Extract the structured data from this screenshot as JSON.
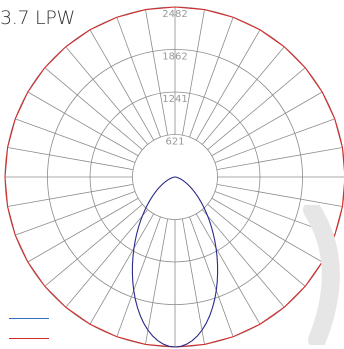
{
  "title": "3.7 LPW",
  "chart_data": {
    "type": "polar",
    "title": "3.7 LPW",
    "rlim": [
      0,
      2482
    ],
    "radial_ticks": [
      "621",
      "1241",
      "1862",
      "2482"
    ],
    "radial_tick_values": [
      621,
      1241,
      1862,
      2482
    ],
    "angular_step_deg": 10,
    "grid": true,
    "series": [
      {
        "color": "#d42a2a",
        "angles_deg": [
          0,
          10,
          20,
          30,
          40,
          50,
          60,
          70,
          80,
          90,
          100,
          110,
          120,
          130,
          140,
          150,
          160,
          170,
          180,
          190,
          200,
          210,
          220,
          230,
          240,
          250,
          260,
          270,
          280,
          290,
          300,
          310,
          320,
          330,
          340,
          350
        ],
        "values": [
          2482,
          2482,
          2482,
          2482,
          2482,
          2482,
          2482,
          2482,
          2482,
          2482,
          2482,
          2482,
          2482,
          2482,
          2482,
          2482,
          2482,
          2482,
          2482,
          2482,
          2482,
          2482,
          2482,
          2482,
          2482,
          2482,
          2482,
          2482,
          2482,
          2482,
          2482,
          2482,
          2482,
          2482,
          2482,
          2482
        ]
      },
      {
        "color": "#2a2a8c",
        "angles_deg": [
          0,
          2,
          4,
          6,
          8,
          10,
          12,
          14,
          16,
          18,
          20,
          22,
          24,
          26,
          28,
          30,
          32,
          34,
          36,
          38,
          40,
          42,
          44,
          46,
          48,
          50,
          52,
          54,
          56,
          58,
          60,
          62,
          64,
          66,
          68,
          70,
          72,
          74,
          76,
          78,
          80,
          82,
          84,
          86,
          88,
          90,
          -2,
          -4,
          -6,
          -8,
          -10,
          -12,
          -14,
          -16,
          -18,
          -20,
          -22,
          -24,
          -26,
          -28,
          -30,
          -32,
          -34,
          -36,
          -38,
          -40,
          -42,
          -44,
          -46,
          -48,
          -50,
          -52,
          -54,
          -56,
          -58,
          -60,
          -62,
          -64,
          -66,
          -68,
          -70,
          -72,
          -74,
          -76,
          -78,
          -80,
          -82,
          -84,
          -86,
          -88,
          -90
        ],
        "values": [
          2482,
          2473,
          2446,
          2403,
          2344,
          2271,
          2186,
          2090,
          1986,
          1876,
          1762,
          1646,
          1530,
          1416,
          1305,
          1198,
          1096,
          999,
          907,
          821,
          740,
          665,
          596,
          532,
          473,
          419,
          370,
          325,
          284,
          247,
          213,
          183,
          155,
          131,
          109,
          89,
          72,
          57,
          44,
          33,
          23,
          15,
          8,
          3,
          1,
          0,
          2473,
          2446,
          2403,
          2344,
          2271,
          2186,
          2090,
          1986,
          1876,
          1762,
          1646,
          1530,
          1416,
          1305,
          1198,
          1096,
          999,
          907,
          821,
          740,
          665,
          596,
          532,
          473,
          419,
          370,
          325,
          284,
          247,
          213,
          183,
          155,
          131,
          109,
          89,
          72,
          57,
          44,
          33,
          23,
          15,
          8,
          3,
          1,
          0
        ]
      }
    ]
  },
  "legend": {
    "entries": [
      {
        "color": "#2a6fc0"
      },
      {
        "color": "#d42a2a"
      }
    ]
  }
}
